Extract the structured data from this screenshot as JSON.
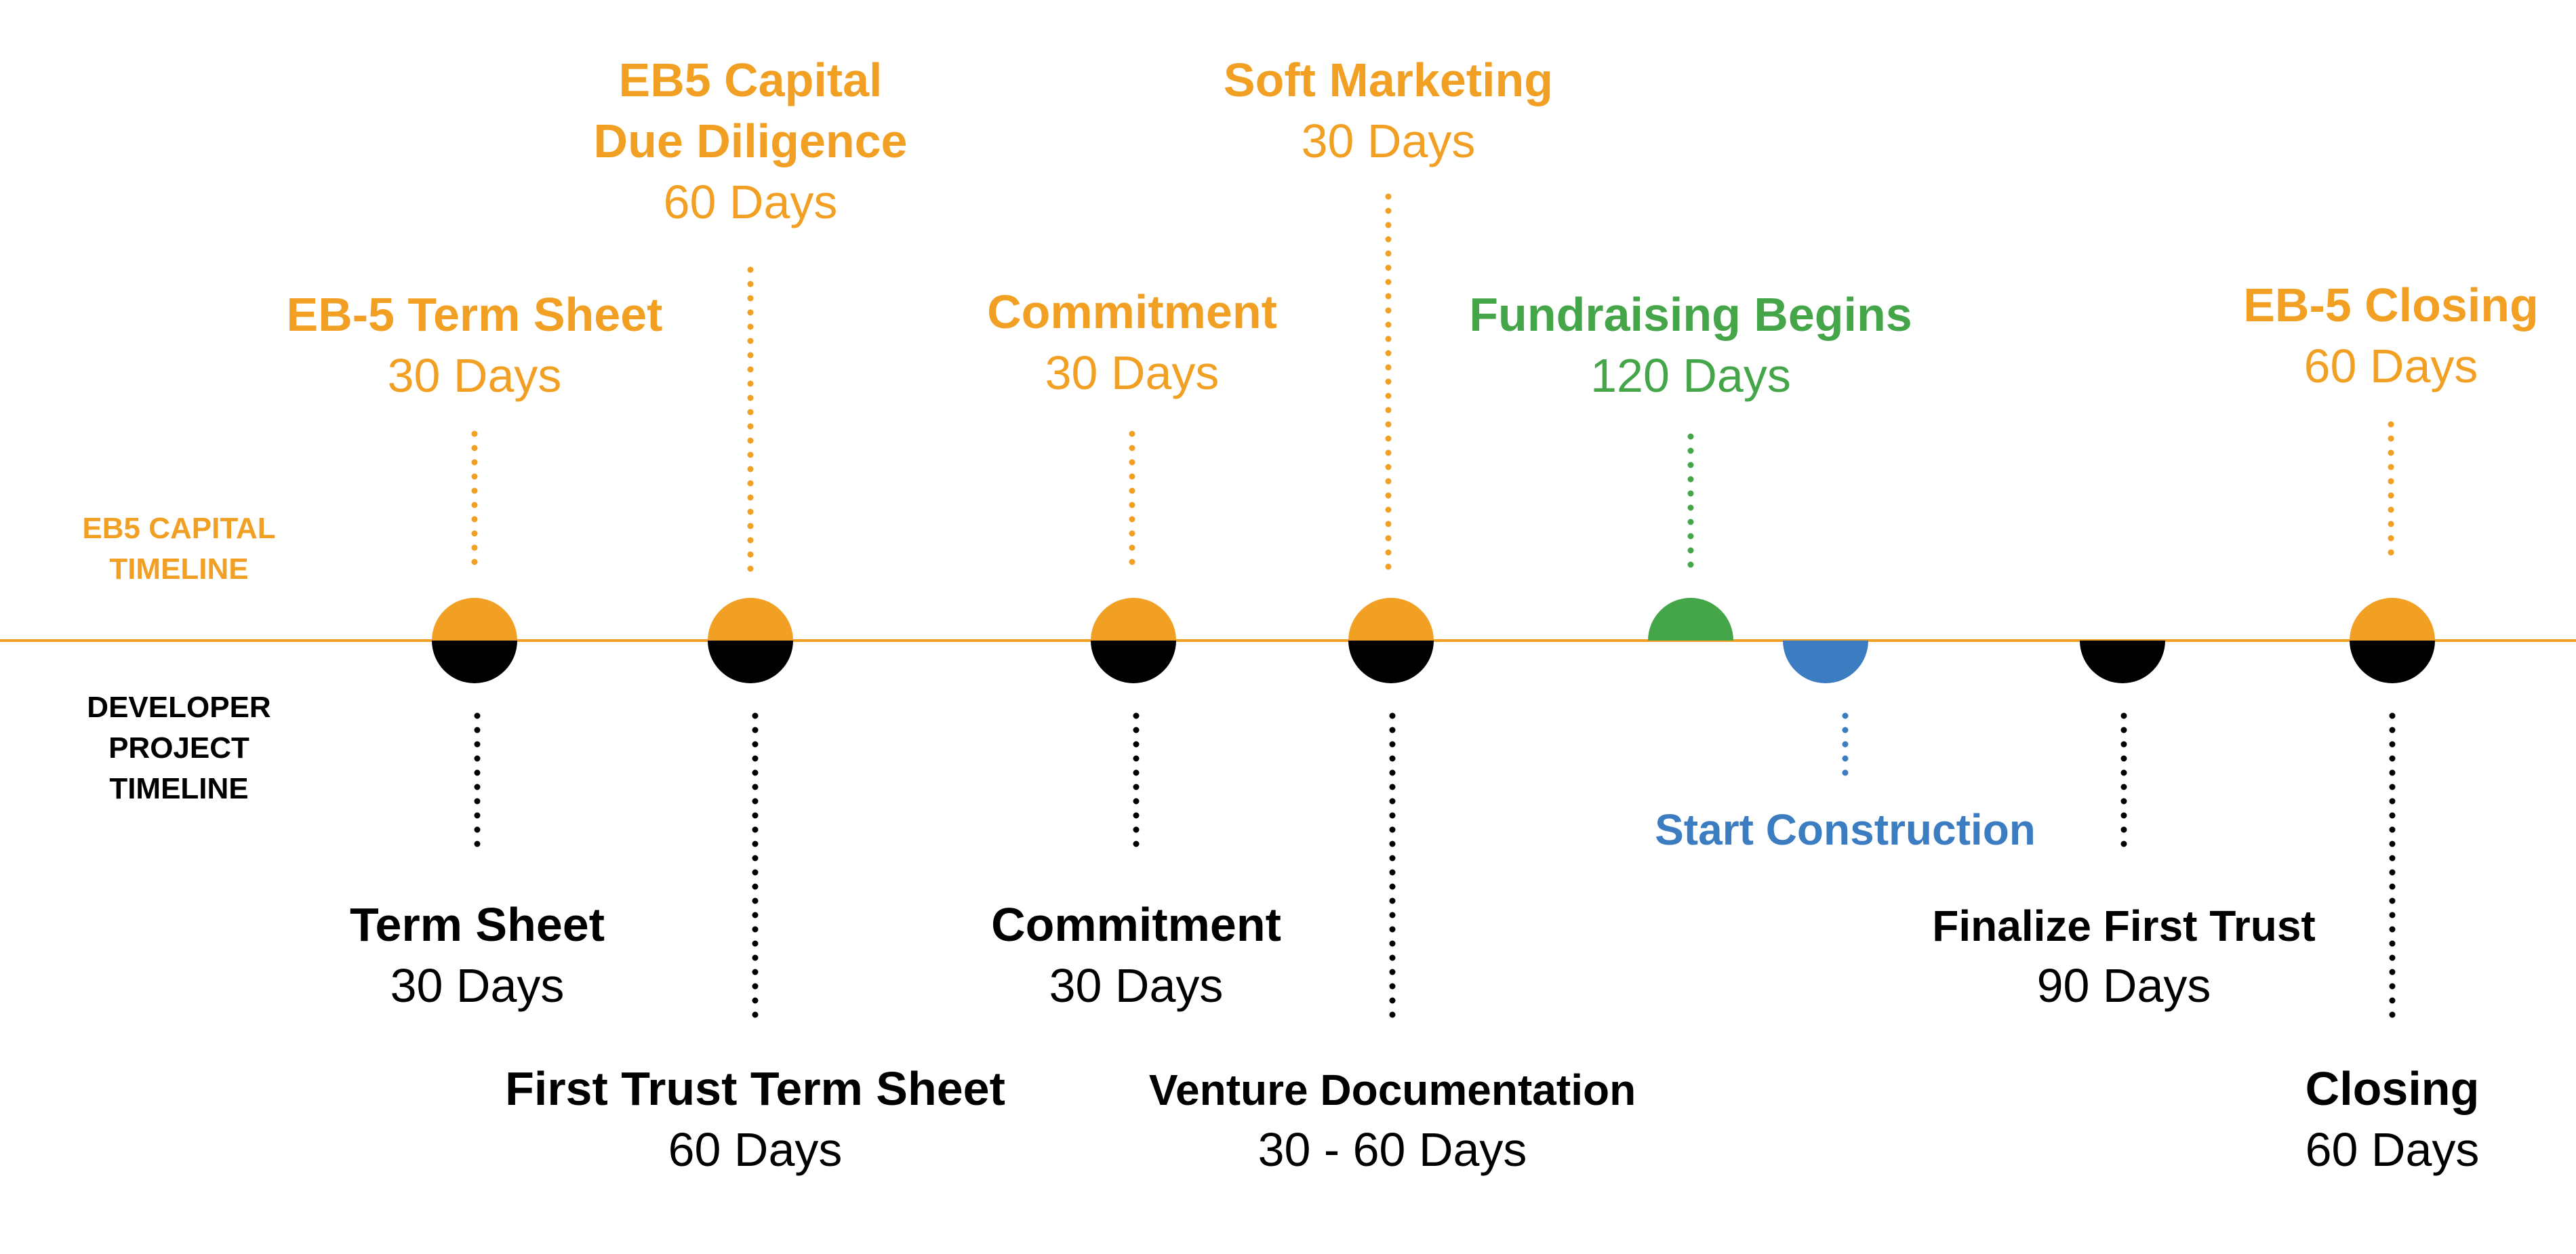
{
  "colors": {
    "orange": "#F2A024",
    "black": "#000000",
    "green": "#44A648",
    "blue": "#3C7DC2",
    "white": "#FFFFFF"
  },
  "labels": {
    "eb5_timeline": [
      "EB5 CAPITAL",
      "TIMELINE"
    ],
    "developer_timeline": [
      "DEVELOPER",
      "PROJECT",
      "TIMELINE"
    ]
  },
  "eb5_events": [
    {
      "id": "eb5-term-sheet",
      "title_lines": [
        "EB-5 Term Sheet"
      ],
      "duration": "30 Days",
      "color": "orange"
    },
    {
      "id": "eb5-due-diligence",
      "title_lines": [
        "EB5 Capital",
        "Due Diligence"
      ],
      "duration": "60 Days",
      "color": "orange"
    },
    {
      "id": "eb5-commitment",
      "title_lines": [
        "Commitment"
      ],
      "duration": "30 Days",
      "color": "orange"
    },
    {
      "id": "soft-marketing",
      "title_lines": [
        "Soft Marketing"
      ],
      "duration": "30 Days",
      "color": "orange"
    },
    {
      "id": "fundraising-begins",
      "title_lines": [
        "Fundraising Begins"
      ],
      "duration": "120 Days",
      "color": "green"
    },
    {
      "id": "eb5-closing",
      "title_lines": [
        "EB-5 Closing"
      ],
      "duration": "60 Days",
      "color": "orange"
    }
  ],
  "developer_events": [
    {
      "id": "term-sheet",
      "title_lines": [
        "Term Sheet"
      ],
      "duration": "30 Days",
      "color": "black"
    },
    {
      "id": "first-trust-term-sheet",
      "title_lines": [
        "First Trust Term Sheet"
      ],
      "duration": "60 Days",
      "color": "black"
    },
    {
      "id": "dev-commitment",
      "title_lines": [
        "Commitment"
      ],
      "duration": "30 Days",
      "color": "black"
    },
    {
      "id": "venture-documentation",
      "title_lines": [
        "Venture Documentation"
      ],
      "duration": "30 - 60 Days",
      "color": "black"
    },
    {
      "id": "start-construction",
      "title_lines": [
        "Start Construction"
      ],
      "duration": "",
      "color": "blue"
    },
    {
      "id": "finalize-first-trust",
      "title_lines": [
        "Finalize First Trust"
      ],
      "duration": "90 Days",
      "color": "black"
    },
    {
      "id": "closing",
      "title_lines": [
        "Closing"
      ],
      "duration": "60 Days",
      "color": "black"
    }
  ],
  "milestones": [
    {
      "id": "m1",
      "top": "orange",
      "bottom": "black"
    },
    {
      "id": "m2",
      "top": "orange",
      "bottom": "black"
    },
    {
      "id": "m3",
      "top": "orange",
      "bottom": "black"
    },
    {
      "id": "m4",
      "top": "orange",
      "bottom": "black"
    },
    {
      "id": "m5",
      "top": "green",
      "bottom": ""
    },
    {
      "id": "m6",
      "top": "",
      "bottom": "blue"
    },
    {
      "id": "m7",
      "top": "",
      "bottom": "black"
    },
    {
      "id": "m8",
      "top": "orange",
      "bottom": "black"
    }
  ]
}
